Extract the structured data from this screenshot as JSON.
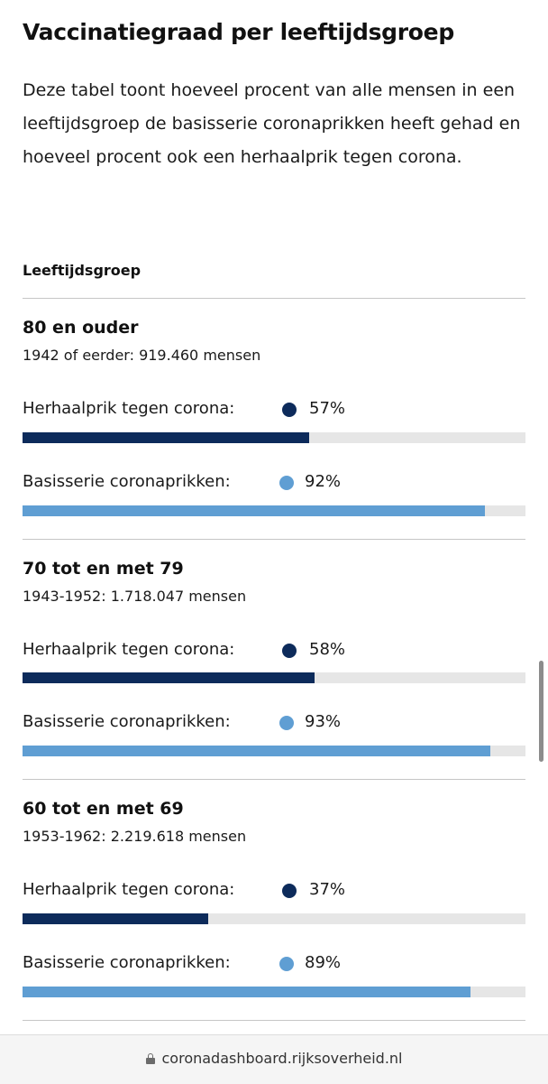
{
  "page": {
    "title": "Vaccinatiegraad per leeftijdsgroep",
    "intro": "Deze tabel toont hoeveel procent van alle mensen in een leeftijdsgroep de basisserie coronaprikken heeft gehad en hoeveel procent ook een herhaalprik tegen corona.",
    "column_header": "Leeftijdsgroep"
  },
  "colors": {
    "booster": "#0d2b5b",
    "basic": "#5f9ed3",
    "track": "#e6e6e6"
  },
  "groups": [
    {
      "label": "80 en ouder",
      "sub": "1942 of eerder: 919.460 mensen",
      "booster": {
        "label": "Herhaalprik tegen corona:",
        "percent_text": "57%",
        "value": 57
      },
      "basic": {
        "label": "Basisserie coronaprikken:",
        "percent_text": "92%",
        "value": 92
      }
    },
    {
      "label": "70 tot en met 79",
      "sub": "1943-1952: 1.718.047 mensen",
      "booster": {
        "label": "Herhaalprik tegen corona:",
        "percent_text": "58%",
        "value": 58
      },
      "basic": {
        "label": "Basisserie coronaprikken:",
        "percent_text": "93%",
        "value": 93
      }
    },
    {
      "label": "60 tot en met 69",
      "sub": "1953-1962: 2.219.618 mensen",
      "booster": {
        "label": "Herhaalprik tegen corona:",
        "percent_text": "37%",
        "value": 37
      },
      "basic": {
        "label": "Basisserie coronaprikken:",
        "percent_text": "89%",
        "value": 89
      }
    }
  ],
  "footer": {
    "lock_icon": "lock-icon",
    "url": "coronadashboard.rijksoverheid.nl"
  }
}
